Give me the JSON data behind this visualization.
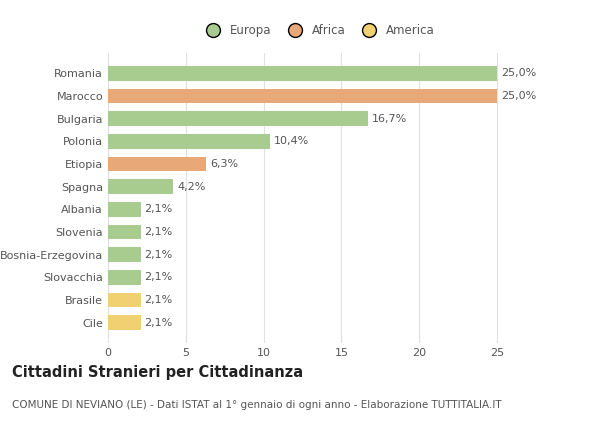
{
  "categories": [
    "Cile",
    "Brasile",
    "Slovacchia",
    "Bosnia-Erzegovina",
    "Slovenia",
    "Albania",
    "Spagna",
    "Etiopia",
    "Polonia",
    "Bulgaria",
    "Marocco",
    "Romania"
  ],
  "values": [
    2.1,
    2.1,
    2.1,
    2.1,
    2.1,
    2.1,
    4.2,
    6.3,
    10.4,
    16.7,
    25.0,
    25.0
  ],
  "colors": [
    "#f0d070",
    "#f0d070",
    "#a8cc90",
    "#a8cc90",
    "#a8cc90",
    "#a8cc90",
    "#a8cc90",
    "#e8a878",
    "#a8cc90",
    "#a8cc90",
    "#e8a878",
    "#a8cc90"
  ],
  "labels": [
    "2,1%",
    "2,1%",
    "2,1%",
    "2,1%",
    "2,1%",
    "2,1%",
    "4,2%",
    "6,3%",
    "10,4%",
    "16,7%",
    "25,0%",
    "25,0%"
  ],
  "continent_colors": {
    "Europa": "#a8cc90",
    "Africa": "#e8a878",
    "America": "#f0d070"
  },
  "xlim": [
    0,
    27
  ],
  "xticks": [
    0,
    5,
    10,
    15,
    20,
    25
  ],
  "title": "Cittadini Stranieri per Cittadinanza",
  "subtitle": "COMUNE DI NEVIANO (LE) - Dati ISTAT al 1° gennaio di ogni anno - Elaborazione TUTTITALIA.IT",
  "background_color": "#ffffff",
  "bar_height": 0.65,
  "grid_color": "#e0e0e0",
  "label_fontsize": 8,
  "tick_fontsize": 8,
  "title_fontsize": 10.5,
  "subtitle_fontsize": 7.5,
  "text_color": "#555555",
  "title_color": "#222222"
}
